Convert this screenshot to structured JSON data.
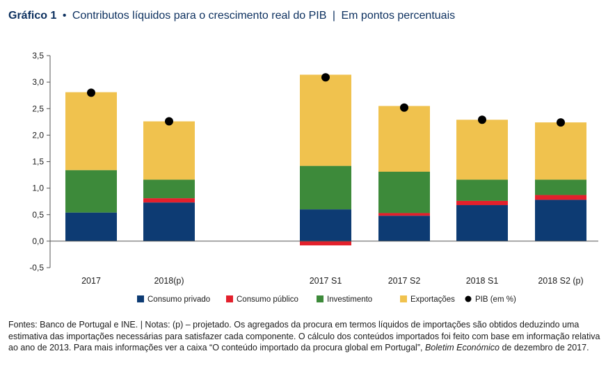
{
  "header": {
    "label": "Gráfico 1",
    "separator": "•",
    "title": "Contributos líquidos para o crescimento real do PIB",
    "divider": "|",
    "unit": "Em pontos percentuais"
  },
  "colors": {
    "consumo_privado": "#0d3b73",
    "consumo_publico": "#e3202c",
    "investimento": "#3d8a3a",
    "exportacoes": "#f0c24e",
    "pib": "#000000",
    "axis": "#555555"
  },
  "chart_data": {
    "type": "bar",
    "stacked": true,
    "categories": [
      "2017",
      "2018(p)",
      "2017 S1",
      "2017 S2",
      "2018 S1",
      "2018 S2 (p)"
    ],
    "ylim": [
      -0.5,
      3.5
    ],
    "yticks": [
      "3,5",
      "3,0",
      "2,5",
      "2,0",
      "1,5",
      "1,0",
      "0,5",
      "0,0",
      "-0,5"
    ],
    "series": [
      {
        "name": "Consumo privado",
        "values": [
          0.54,
          0.73,
          0.6,
          0.48,
          0.68,
          0.78
        ]
      },
      {
        "name": "Consumo público",
        "values": [
          0.0,
          0.08,
          -0.08,
          0.05,
          0.08,
          0.09
        ]
      },
      {
        "name": "Investimento",
        "values": [
          0.8,
          0.35,
          0.82,
          0.78,
          0.4,
          0.29
        ]
      },
      {
        "name": "Exportações",
        "values": [
          1.47,
          1.1,
          1.72,
          1.24,
          1.13,
          1.08
        ]
      }
    ],
    "markers": {
      "name": "PIB (em %)",
      "values": [
        2.8,
        2.26,
        3.09,
        2.52,
        2.29,
        2.24
      ]
    }
  },
  "notes": {
    "text": "Fontes: Banco de Portugal e INE.  |  Notas: (p) – projetado. Os agregados da procura em termos líquidos de importações são obtidos deduzindo uma estimativa das importações necessárias para satisfazer cada componente. O cálculo dos conteúdos importados foi feito com base em informação relativa ao ano de 2013. Para mais informações ver a caixa “O conteúdo importado da procura global em Portugal”,",
    "italic": "Boletim Económico",
    "end": "de dezembro de 2017."
  }
}
